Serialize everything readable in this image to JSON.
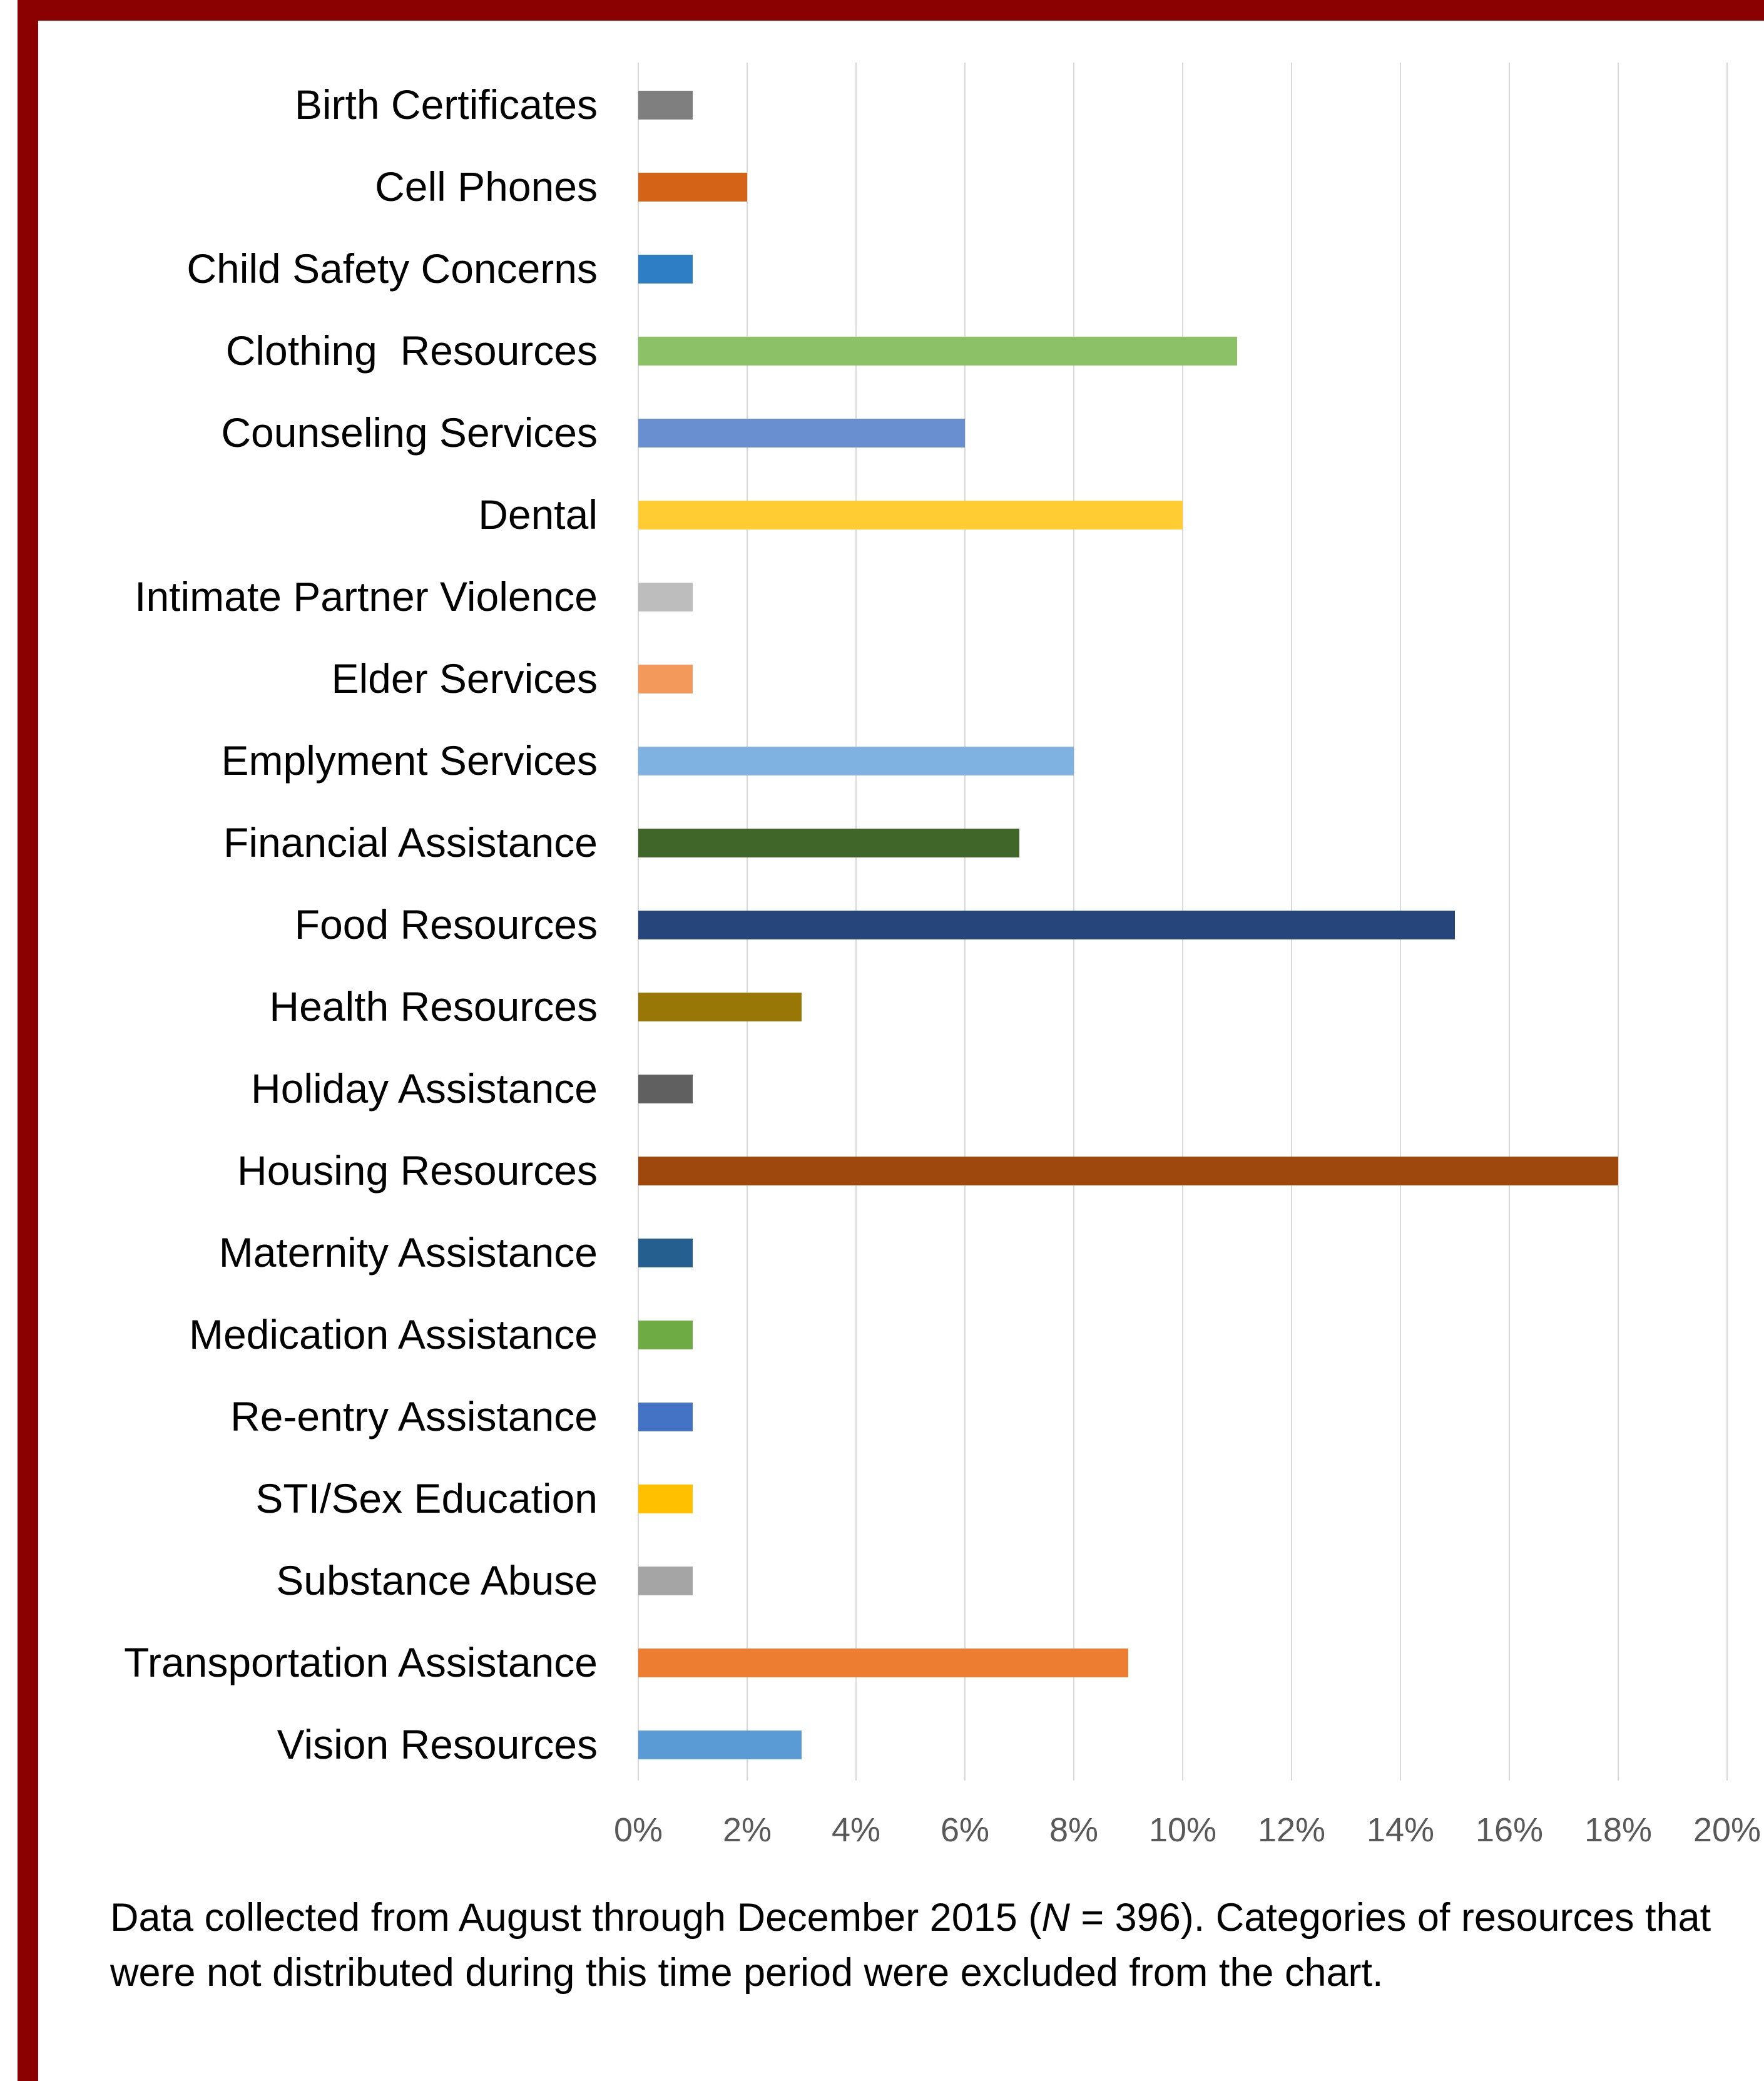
{
  "chart_data": {
    "type": "bar",
    "orientation": "horizontal",
    "categories": [
      "Birth Certificates",
      "Cell Phones",
      "Child Safety Concerns",
      "Clothing  Resources",
      "Counseling Services",
      "Dental",
      "Intimate Partner Violence",
      "Elder Services",
      "Emplyment Services",
      "Financial Assistance",
      "Food Resources",
      "Health Resources",
      "Holiday Assistance",
      "Housing Resources",
      "Maternity Assistance",
      "Medication Assistance",
      "Re-entry Assistance",
      "STI/Sex Education",
      "Substance Abuse",
      "Transportation Assistance",
      "Vision Resources"
    ],
    "values": [
      1,
      2,
      1,
      11,
      6,
      10,
      1,
      1,
      8,
      7,
      15,
      3,
      1,
      18,
      1,
      1,
      1,
      1,
      1,
      9,
      3
    ],
    "colors": [
      "#7f7f7f",
      "#d46317",
      "#2e7ec6",
      "#8dc167",
      "#6a8fd0",
      "#ffcc33",
      "#bdbdbd",
      "#f4995c",
      "#7fb1e1",
      "#406629",
      "#26457a",
      "#987707",
      "#606060",
      "#9e480e",
      "#245f90",
      "#6eab45",
      "#4473c5",
      "#ffc000",
      "#a5a5a5",
      "#ed7d31",
      "#5b9bd5"
    ],
    "x_ticks": [
      "0%",
      "2%",
      "4%",
      "6%",
      "8%",
      "10%",
      "12%",
      "14%",
      "16%",
      "18%",
      "20%"
    ],
    "xlim": [
      0,
      20
    ],
    "unit": "%",
    "grid": true,
    "frame_color": "#8b0000"
  },
  "caption": {
    "part1": "Data collected from August through December 2015 (",
    "n_symbol": "N",
    "part2": " = 396).  Categories of resources that were not distributed during this time period were excluded from the chart."
  }
}
